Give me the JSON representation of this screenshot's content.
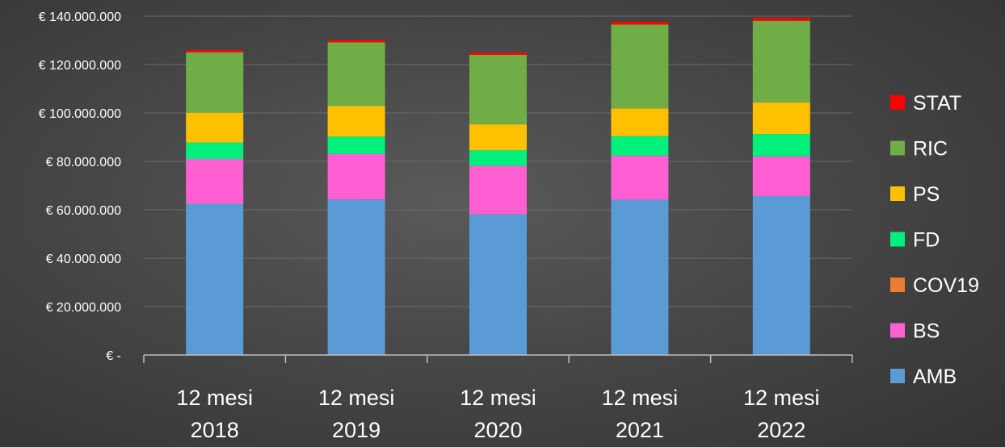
{
  "chart_data": {
    "type": "bar",
    "stacked": true,
    "title": "",
    "xlabel": "",
    "ylabel": "",
    "ylim": [
      0,
      140000000
    ],
    "grid": true,
    "legend_position": "right",
    "y_ticks": [
      {
        "value": 0,
        "label": "€ -"
      },
      {
        "value": 20000000,
        "label": "€ 20.000.000"
      },
      {
        "value": 40000000,
        "label": "€ 40.000.000"
      },
      {
        "value": 60000000,
        "label": "€ 60.000.000"
      },
      {
        "value": 80000000,
        "label": "€ 80.000.000"
      },
      {
        "value": 100000000,
        "label": "€ 100.000.000"
      },
      {
        "value": 120000000,
        "label": "€ 120.000.000"
      },
      {
        "value": 140000000,
        "label": "€ 140.000.000"
      }
    ],
    "categories": [
      [
        "12 mesi",
        "2018"
      ],
      [
        "12 mesi",
        "2019"
      ],
      [
        "12 mesi",
        "2020"
      ],
      [
        "12 mesi",
        "2021"
      ],
      [
        "12 mesi",
        "2022"
      ]
    ],
    "series": [
      {
        "name": "AMB",
        "color": "#5b9bd5",
        "values": [
          62500000,
          64300000,
          58200000,
          64200000,
          65700000
        ]
      },
      {
        "name": "BS",
        "color": "#ff5fd2",
        "values": [
          18500000,
          18800000,
          20000000,
          18200000,
          16400000
        ]
      },
      {
        "name": "COV19",
        "color": "#ed7d31",
        "values": [
          0,
          0,
          0,
          0,
          0
        ]
      },
      {
        "name": "FD",
        "color": "#00f07c",
        "values": [
          6800000,
          7100000,
          6400000,
          8000000,
          9200000
        ]
      },
      {
        "name": "PS",
        "color": "#ffc000",
        "values": [
          12300000,
          12700000,
          10700000,
          11500000,
          13000000
        ]
      },
      {
        "name": "RIC",
        "color": "#70ad47",
        "values": [
          25000000,
          26300000,
          28700000,
          34600000,
          33800000
        ]
      },
      {
        "name": "STAT",
        "color": "#ff0000",
        "values": [
          900000,
          900000,
          900000,
          1200000,
          1100000
        ]
      }
    ],
    "legend_order": [
      "STAT",
      "RIC",
      "PS",
      "FD",
      "COV19",
      "BS",
      "AMB"
    ]
  }
}
